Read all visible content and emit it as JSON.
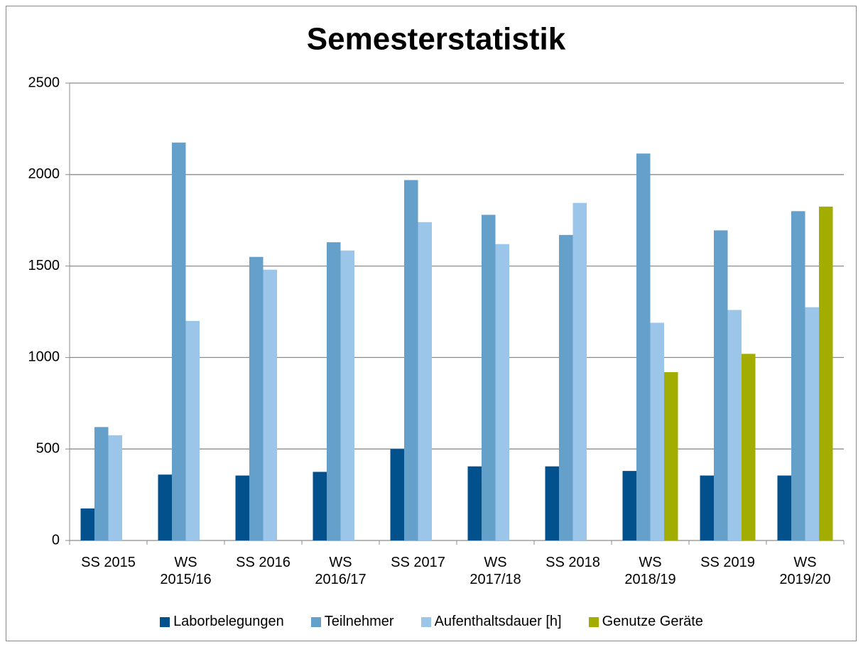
{
  "chart_data": {
    "type": "bar",
    "title": "Semesterstatistik",
    "categories": [
      "SS 2015",
      "WS 2015/16",
      "SS 2016",
      "WS 2016/17",
      "SS 2017",
      "WS 2017/18",
      "SS 2018",
      "WS 2018/19",
      "SS 2019",
      "WS 2019/20"
    ],
    "series": [
      {
        "name": "Laborbelegungen",
        "color": "#02508c",
        "values": [
          175,
          360,
          355,
          375,
          500,
          405,
          405,
          380,
          355,
          355
        ]
      },
      {
        "name": "Teilnehmer",
        "color": "#65a0cb",
        "values": [
          620,
          2175,
          1550,
          1630,
          1970,
          1780,
          1670,
          2115,
          1695,
          1800
        ]
      },
      {
        "name": "Aufenthaltsdauer [h]",
        "color": "#9cc5ea",
        "values": [
          575,
          1200,
          1480,
          1585,
          1740,
          1620,
          1845,
          1190,
          1260,
          1275
        ]
      },
      {
        "name": "Genutze Geräte",
        "color": "#a3ad00",
        "values": [
          null,
          null,
          null,
          null,
          null,
          null,
          null,
          920,
          1020,
          1825
        ]
      }
    ],
    "ylim": [
      0,
      2500
    ],
    "yticks": [
      0,
      500,
      1000,
      1500,
      2000,
      2500
    ],
    "grid": true,
    "legend": "bottom"
  }
}
